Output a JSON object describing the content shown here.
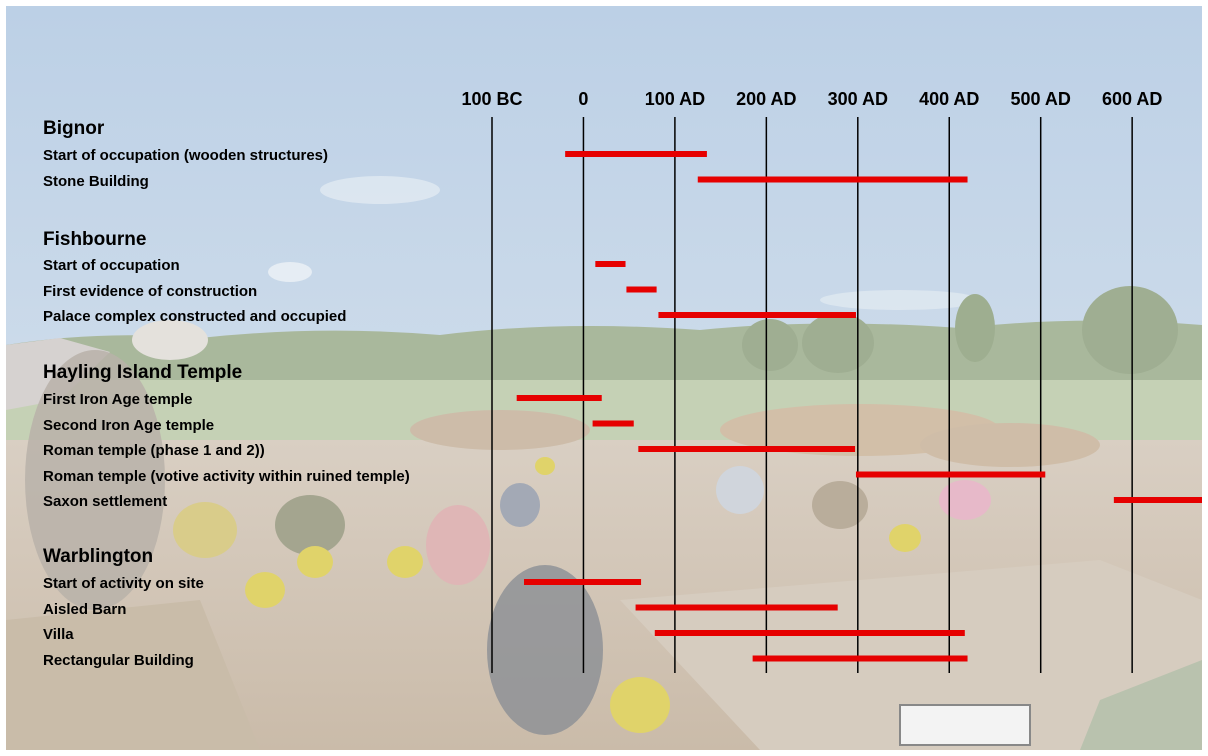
{
  "chart_data": {
    "type": "timeline",
    "title": "",
    "x_axis": {
      "min": -100,
      "max": 600,
      "ticks": [
        {
          "value": -100,
          "label": "100 BC"
        },
        {
          "value": 0,
          "label": "0"
        },
        {
          "value": 100,
          "label": "100 AD"
        },
        {
          "value": 200,
          "label": "200 AD"
        },
        {
          "value": 300,
          "label": "300 AD"
        },
        {
          "value": 400,
          "label": "400 AD"
        },
        {
          "value": 500,
          "label": "500 AD"
        },
        {
          "value": 600,
          "label": "600 AD"
        }
      ],
      "grid": true
    },
    "bar_color": "#e60000",
    "groups": [
      {
        "site": "Bignor",
        "events": [
          {
            "label": "Start of occupation (wooden structures)",
            "start": -20,
            "end": 135
          },
          {
            "label": "Stone Building",
            "start": 125,
            "end": 420
          }
        ]
      },
      {
        "site": "Fishbourne",
        "events": [
          {
            "label": "Start of occupation",
            "start": 13,
            "end": 46
          },
          {
            "label": "First evidence of construction",
            "start": 47,
            "end": 80
          },
          {
            "label": "Palace complex constructed and occupied",
            "start": 82,
            "end": 298
          }
        ]
      },
      {
        "site": "Hayling Island Temple",
        "events": [
          {
            "label": "First Iron Age temple",
            "start": -73,
            "end": 20
          },
          {
            "label": "Second Iron Age temple",
            "start": 10,
            "end": 55
          },
          {
            "label": "Roman temple (phase 1 and 2))",
            "start": 60,
            "end": 297
          },
          {
            "label": "Roman temple (votive activity within ruined temple)",
            "start": 298,
            "end": 505
          },
          {
            "label": "Saxon settlement",
            "start": 580,
            "end": 720
          }
        ]
      },
      {
        "site": "Warblington",
        "events": [
          {
            "label": "Start of activity on site",
            "start": -65,
            "end": 63
          },
          {
            "label": "Aisled Barn",
            "start": 57,
            "end": 278
          },
          {
            "label": "Villa",
            "start": 78,
            "end": 417
          },
          {
            "label": "Rectangular Building",
            "start": 185,
            "end": 420
          }
        ]
      }
    ]
  }
}
